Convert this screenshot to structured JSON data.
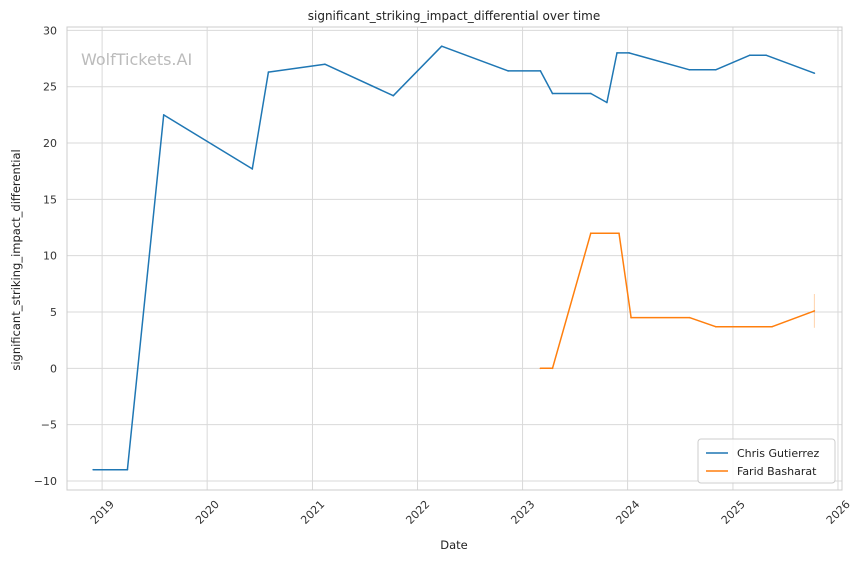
{
  "watermark": "WolfTickets.AI",
  "chart_data": {
    "type": "line",
    "title": "significant_striking_impact_differential over time",
    "xlabel": "Date",
    "ylabel": "significant_striking_impact_differential",
    "x_type": "date",
    "xlim": [
      "2018-09-01",
      "2026-01-15"
    ],
    "ylim": [
      -10.8,
      30.3
    ],
    "x_ticks": [
      "2019",
      "2020",
      "2021",
      "2022",
      "2023",
      "2024",
      "2025",
      "2026"
    ],
    "y_ticks": [
      -10,
      -5,
      0,
      5,
      10,
      15,
      20,
      25,
      30
    ],
    "y_tick_labels": [
      "−10",
      "−5",
      "0",
      "5",
      "10",
      "15",
      "20",
      "25",
      "30"
    ],
    "grid": true,
    "legend_position": "bottom-right",
    "series": [
      {
        "name": "Chris Gutierrez",
        "color": "#1f77b4",
        "points": [
          [
            "2018-12-01",
            -9.0
          ],
          [
            "2019-03-30",
            -9.0
          ],
          [
            "2019-08-03",
            22.5
          ],
          [
            "2020-06-06",
            17.7
          ],
          [
            "2020-08-01",
            26.3
          ],
          [
            "2021-02-13",
            27.0
          ],
          [
            "2021-10-09",
            24.2
          ],
          [
            "2022-03-26",
            28.6
          ],
          [
            "2022-11-12",
            26.4
          ],
          [
            "2023-03-04",
            26.4
          ],
          [
            "2023-04-15",
            24.4
          ],
          [
            "2023-08-26",
            24.4
          ],
          [
            "2023-10-21",
            23.6
          ],
          [
            "2023-11-25",
            28.0
          ],
          [
            "2024-01-06",
            28.0
          ],
          [
            "2024-08-03",
            26.5
          ],
          [
            "2024-11-02",
            26.5
          ],
          [
            "2025-03-01",
            27.8
          ],
          [
            "2025-04-26",
            27.8
          ],
          [
            "2025-10-11",
            26.2
          ]
        ]
      },
      {
        "name": "Farid Basharat",
        "color": "#ff7f0e",
        "points": [
          [
            "2023-03-04",
            0.0
          ],
          [
            "2023-04-15",
            0.0
          ],
          [
            "2023-08-26",
            12.0
          ],
          [
            "2023-12-02",
            12.0
          ],
          [
            "2024-01-13",
            4.5
          ],
          [
            "2024-08-03",
            4.5
          ],
          [
            "2024-11-02",
            3.7
          ],
          [
            "2025-05-17",
            3.7
          ],
          [
            "2025-10-11",
            5.1
          ]
        ]
      }
    ]
  }
}
